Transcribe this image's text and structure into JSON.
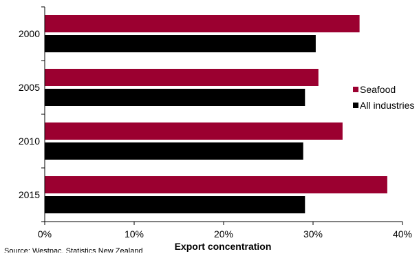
{
  "chart_data": {
    "type": "bar",
    "orientation": "horizontal",
    "title": "",
    "xlabel": "Export concentration",
    "ylabel": "",
    "categories": [
      "2000",
      "2005",
      "2010",
      "2015"
    ],
    "series": [
      {
        "name": "Seafood",
        "values": [
          35.2,
          30.6,
          33.3,
          38.3
        ],
        "color": "#9b0030"
      },
      {
        "name": "All industries",
        "values": [
          30.3,
          29.1,
          28.9,
          29.1
        ],
        "color": "#000000"
      }
    ],
    "xlim": [
      0,
      40
    ],
    "x_ticks": [
      0,
      10,
      20,
      30,
      40
    ],
    "x_tick_labels": [
      "0%",
      "10%",
      "20%",
      "30%",
      "40%"
    ],
    "grid": false,
    "legend_position": "right"
  },
  "source": "Source: Westpac, Statistics New Zealand"
}
